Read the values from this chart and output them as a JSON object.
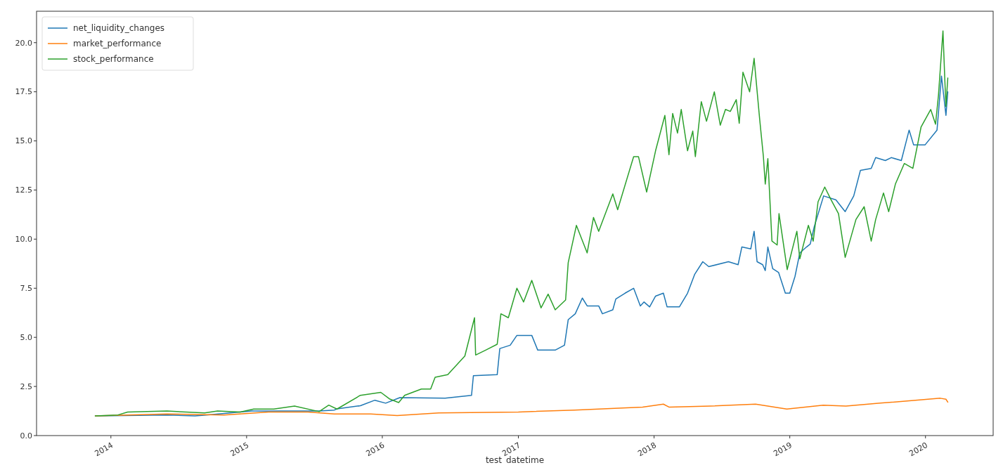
{
  "chart_data": {
    "type": "line",
    "xlabel": "test_datetime",
    "xlim": [
      "2013-06-15",
      "2020-07-01"
    ],
    "ylim": [
      0,
      21.6
    ],
    "xticks": [
      {
        "value": "2014",
        "label": "2014"
      },
      {
        "value": "2015",
        "label": "2015"
      },
      {
        "value": "2016",
        "label": "2016"
      },
      {
        "value": "2017",
        "label": "2017"
      },
      {
        "value": "2018",
        "label": "2018"
      },
      {
        "value": "2019",
        "label": "2019"
      },
      {
        "value": "2020",
        "label": "2020"
      }
    ],
    "yticks": [
      {
        "value": 0,
        "label": "0.0"
      },
      {
        "value": 2.5,
        "label": "2.5"
      },
      {
        "value": 5,
        "label": "5.0"
      },
      {
        "value": 7.5,
        "label": "7.5"
      },
      {
        "value": 10,
        "label": "10.0"
      },
      {
        "value": 12.5,
        "label": "12.5"
      },
      {
        "value": 15,
        "label": "15.0"
      },
      {
        "value": 17.5,
        "label": "17.5"
      },
      {
        "value": 20,
        "label": "20.0"
      }
    ],
    "legend": "top left",
    "grid": false,
    "line_style": "solid",
    "marker": "none",
    "series": [
      {
        "name": "net_liquidity_changes",
        "color": "#1f77b4",
        "x": [
          "2013-11-20",
          "2014-06-01",
          "2014-08-15",
          "2014-09-15",
          "2015-01-15",
          "2015-07-15",
          "2015-08-25",
          "2015-09-01",
          "2015-11-03",
          "2015-12-12",
          "2016-01-10",
          "2016-02-17",
          "2016-06-18",
          "2016-08-28",
          "2016-09-02",
          "2016-11-05",
          "2016-11-12",
          "2016-12-10",
          "2016-12-28",
          "2017-02-06",
          "2017-02-22",
          "2017-04-10",
          "2017-05-05",
          "2017-05-15",
          "2017-06-03",
          "2017-06-22",
          "2017-07-05",
          "2017-08-05",
          "2017-08-15",
          "2017-09-12",
          "2017-09-20",
          "2017-10-15",
          "2017-11-07",
          "2017-11-25",
          "2017-12-05",
          "2017-12-20",
          "2018-01-05",
          "2018-01-26",
          "2018-02-05",
          "2018-03-10",
          "2018-04-01",
          "2018-04-20",
          "2018-05-12",
          "2018-05-28",
          "2018-07-20",
          "2018-08-15",
          "2018-08-25",
          "2018-09-18",
          "2018-09-27",
          "2018-10-05",
          "2018-10-20",
          "2018-10-27",
          "2018-11-03",
          "2018-11-16",
          "2018-12-02",
          "2018-12-20",
          "2019-01-01",
          "2019-01-15",
          "2019-01-28",
          "2019-02-15",
          "2019-02-25",
          "2019-03-08",
          "2019-04-02",
          "2019-05-05",
          "2019-05-30",
          "2019-06-22",
          "2019-07-10",
          "2019-08-08",
          "2019-08-20",
          "2019-09-15",
          "2019-10-01",
          "2019-10-28",
          "2019-11-18",
          "2019-11-30",
          "2019-12-31",
          "2020-02-01",
          "2020-02-13",
          "2020-02-25",
          "2020-03-01"
        ],
        "values": [
          1.0,
          1.05,
          1.0,
          1.05,
          1.25,
          1.25,
          1.3,
          1.36,
          1.52,
          1.8,
          1.65,
          1.93,
          1.9,
          2.05,
          3.05,
          3.1,
          4.43,
          4.6,
          5.1,
          5.1,
          4.35,
          4.35,
          4.6,
          5.9,
          6.2,
          7.0,
          6.6,
          6.6,
          6.2,
          6.4,
          6.95,
          7.25,
          7.5,
          6.6,
          6.8,
          6.55,
          7.1,
          7.25,
          6.55,
          6.55,
          7.25,
          8.2,
          8.85,
          8.6,
          8.85,
          8.7,
          9.6,
          9.5,
          10.4,
          8.85,
          8.7,
          8.4,
          9.6,
          8.5,
          8.3,
          7.25,
          7.25,
          8.1,
          9.3,
          9.6,
          9.75,
          10.65,
          12.2,
          12.0,
          11.4,
          12.2,
          13.5,
          13.6,
          14.15,
          14.0,
          14.15,
          14.0,
          15.55,
          14.8,
          14.8,
          15.55,
          18.3,
          16.3,
          17.5
        ]
      },
      {
        "name": "market_performance",
        "color": "#ff7f0e",
        "x": [
          "2013-11-20",
          "2014-06-01",
          "2014-11-01",
          "2015-03-01",
          "2015-06-15",
          "2015-08-25",
          "2015-12-01",
          "2016-02-10",
          "2016-06-01",
          "2017-01-01",
          "2017-06-01",
          "2017-12-01",
          "2018-01-26",
          "2018-02-10",
          "2018-06-01",
          "2018-10-01",
          "2018-12-24",
          "2019-04-01",
          "2019-06-01",
          "2019-09-01",
          "2020-02-10",
          "2020-02-25",
          "2020-03-01"
        ],
        "values": [
          1.0,
          1.1,
          1.05,
          1.2,
          1.2,
          1.1,
          1.1,
          1.02,
          1.15,
          1.2,
          1.3,
          1.45,
          1.6,
          1.45,
          1.5,
          1.6,
          1.35,
          1.55,
          1.5,
          1.65,
          1.9,
          1.85,
          1.7
        ]
      },
      {
        "name": "stock_performance",
        "color": "#2ca02c",
        "x": [
          "2013-11-20",
          "2014-01-20",
          "2014-02-15",
          "2014-06-01",
          "2014-09-10",
          "2014-10-15",
          "2014-12-15",
          "2015-01-20",
          "2015-03-15",
          "2015-05-10",
          "2015-07-15",
          "2015-08-10",
          "2015-09-01",
          "2015-11-03",
          "2015-12-28",
          "2016-01-20",
          "2016-02-14",
          "2016-03-01",
          "2016-04-15",
          "2016-05-10",
          "2016-05-22",
          "2016-06-25",
          "2016-08-10",
          "2016-09-05",
          "2016-09-08",
          "2016-10-05",
          "2016-11-05",
          "2016-11-15",
          "2016-12-05",
          "2016-12-28",
          "2017-01-15",
          "2017-02-06",
          "2017-03-03",
          "2017-03-22",
          "2017-04-10",
          "2017-05-08",
          "2017-05-15",
          "2017-06-06",
          "2017-07-05",
          "2017-07-22",
          "2017-08-05",
          "2017-09-12",
          "2017-09-25",
          "2017-11-07",
          "2017-11-20",
          "2017-12-12",
          "2018-01-05",
          "2018-01-30",
          "2018-02-10",
          "2018-02-20",
          "2018-03-05",
          "2018-03-15",
          "2018-04-01",
          "2018-04-15",
          "2018-04-22",
          "2018-05-08",
          "2018-05-22",
          "2018-06-12",
          "2018-06-28",
          "2018-07-12",
          "2018-07-25",
          "2018-08-10",
          "2018-08-18",
          "2018-08-28",
          "2018-09-15",
          "2018-09-27",
          "2018-10-12",
          "2018-10-22",
          "2018-10-27",
          "2018-11-03",
          "2018-11-14",
          "2018-11-28",
          "2018-12-03",
          "2018-12-25",
          "2019-01-20",
          "2019-01-28",
          "2019-02-20",
          "2019-03-05",
          "2019-03-18",
          "2019-04-05",
          "2019-04-22",
          "2019-05-12",
          "2019-05-30",
          "2019-06-28",
          "2019-07-20",
          "2019-08-08",
          "2019-08-20",
          "2019-09-10",
          "2019-09-24",
          "2019-10-12",
          "2019-11-05",
          "2019-11-28",
          "2019-12-20",
          "2020-01-15",
          "2020-01-28",
          "2020-02-05",
          "2020-02-17",
          "2020-02-22",
          "2020-02-25",
          "2020-03-01"
        ],
        "values": [
          1.0,
          1.05,
          1.2,
          1.25,
          1.15,
          1.25,
          1.2,
          1.35,
          1.35,
          1.5,
          1.22,
          1.55,
          1.35,
          2.05,
          2.2,
          1.87,
          1.68,
          2.05,
          2.37,
          2.37,
          2.97,
          3.1,
          4.05,
          6.0,
          4.1,
          4.35,
          4.65,
          6.2,
          6.0,
          7.5,
          6.8,
          7.9,
          6.5,
          7.2,
          6.4,
          6.9,
          8.8,
          10.7,
          9.3,
          11.1,
          10.4,
          12.3,
          11.5,
          14.2,
          14.2,
          12.4,
          14.5,
          16.3,
          14.3,
          16.4,
          15.4,
          16.6,
          14.5,
          15.5,
          14.2,
          17.0,
          16.0,
          17.5,
          15.8,
          16.6,
          16.5,
          17.1,
          15.9,
          18.5,
          17.5,
          19.2,
          16.1,
          14.2,
          12.8,
          14.1,
          9.9,
          9.7,
          11.3,
          8.45,
          10.4,
          9.0,
          10.7,
          9.9,
          11.9,
          12.65,
          12.0,
          11.3,
          9.07,
          11.0,
          11.65,
          9.9,
          11.0,
          12.35,
          11.4,
          12.8,
          13.85,
          13.6,
          15.7,
          16.6,
          15.85,
          17.35,
          20.6,
          18.1,
          16.75,
          18.2
        ]
      }
    ]
  }
}
